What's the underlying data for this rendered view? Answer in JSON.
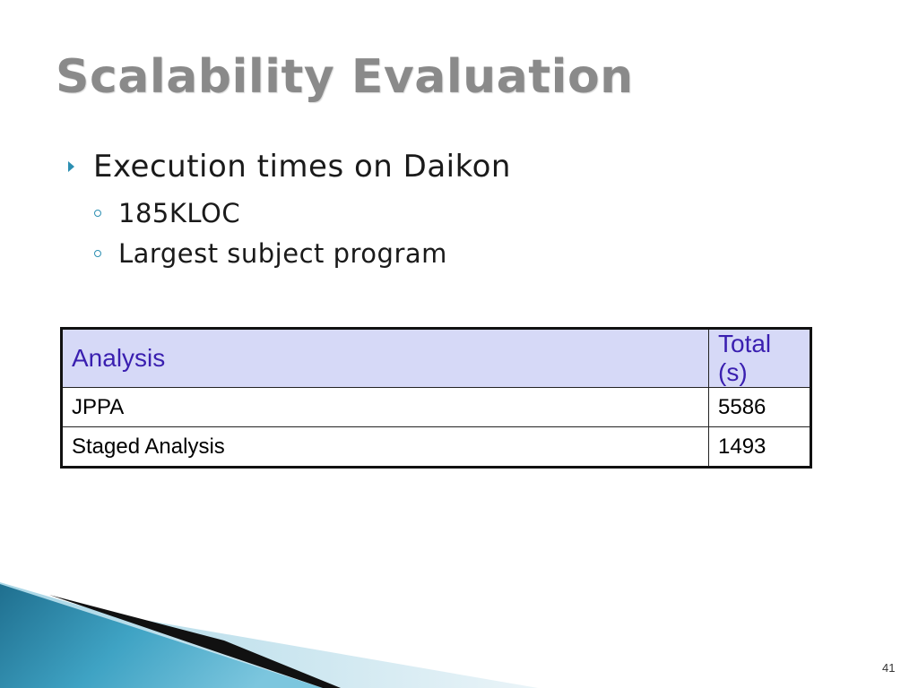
{
  "slide": {
    "title": "Scalability Evaluation",
    "bullet": "Execution times on Daikon",
    "sub_bullets": [
      "185KLOC",
      "Largest subject program"
    ],
    "page_number": "41"
  },
  "table": {
    "headers": [
      "Analysis",
      "Total (s)"
    ],
    "rows": [
      [
        "JPPA",
        "5586"
      ],
      [
        "Staged Analysis",
        "1493"
      ]
    ]
  },
  "colors": {
    "title": "#8a8a8a",
    "bullet_accent": "#2c8fb2",
    "header_bg": "#d6d9f7",
    "header_text": "#3a1fb0"
  }
}
